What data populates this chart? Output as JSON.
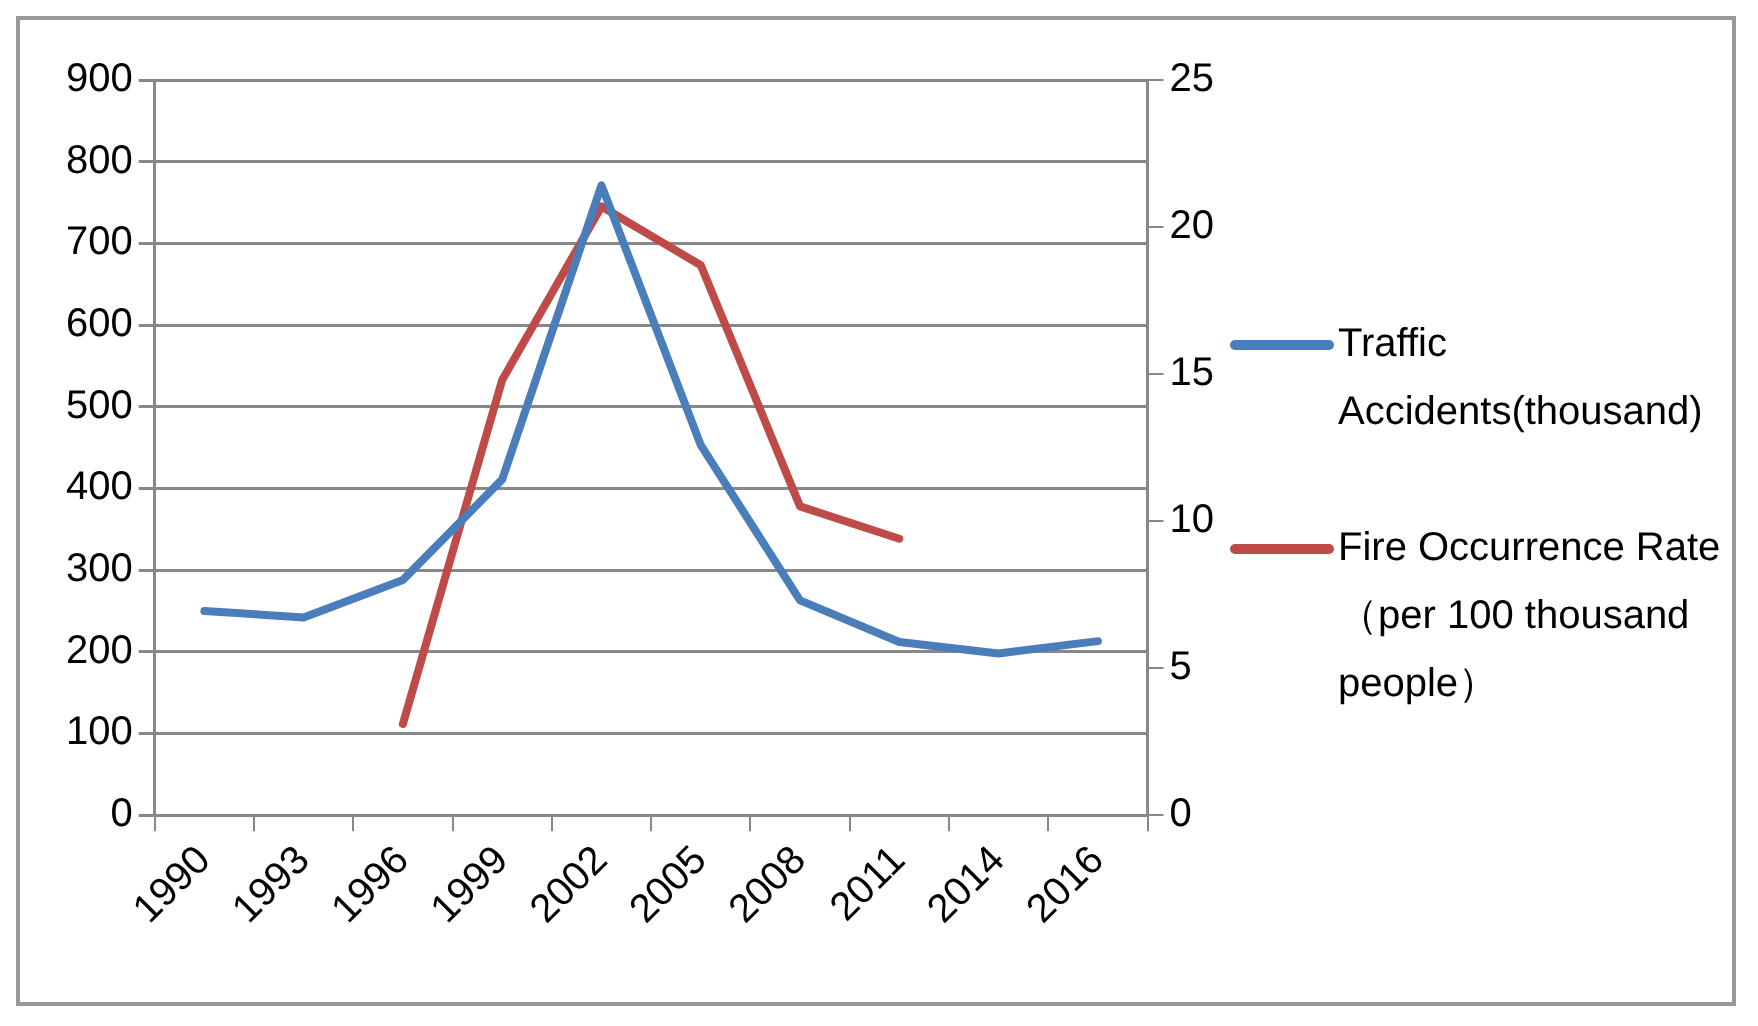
{
  "chart_data": {
    "type": "line",
    "categories": [
      "1990",
      "1993",
      "1996",
      "1999",
      "2002",
      "2005",
      "2008",
      "2011",
      "2014",
      "2016"
    ],
    "series": [
      {
        "name": "Traffic Accidents(thousand)",
        "color": "#4a7ebb",
        "values": [
          250,
          242,
          288,
          411,
          771,
          453,
          263,
          212,
          198,
          213
        ]
      },
      {
        "name": "Fire Occurrence Rate（per 100 thousand people）",
        "color": "#be4b48",
        "axis": "y2",
        "values": [
          null,
          null,
          3.1,
          14.8,
          20.7,
          18.7,
          10.5,
          9.4,
          null,
          null
        ]
      }
    ],
    "ylim": [
      0,
      900
    ],
    "yticks": [
      0,
      100,
      200,
      300,
      400,
      500,
      600,
      700,
      800,
      900
    ],
    "y2lim": [
      0,
      25
    ],
    "y2ticks": [
      0,
      5,
      10,
      15,
      20,
      25
    ],
    "grid": "y",
    "legend": "right",
    "marker": "none",
    "line_style": "solid"
  }
}
